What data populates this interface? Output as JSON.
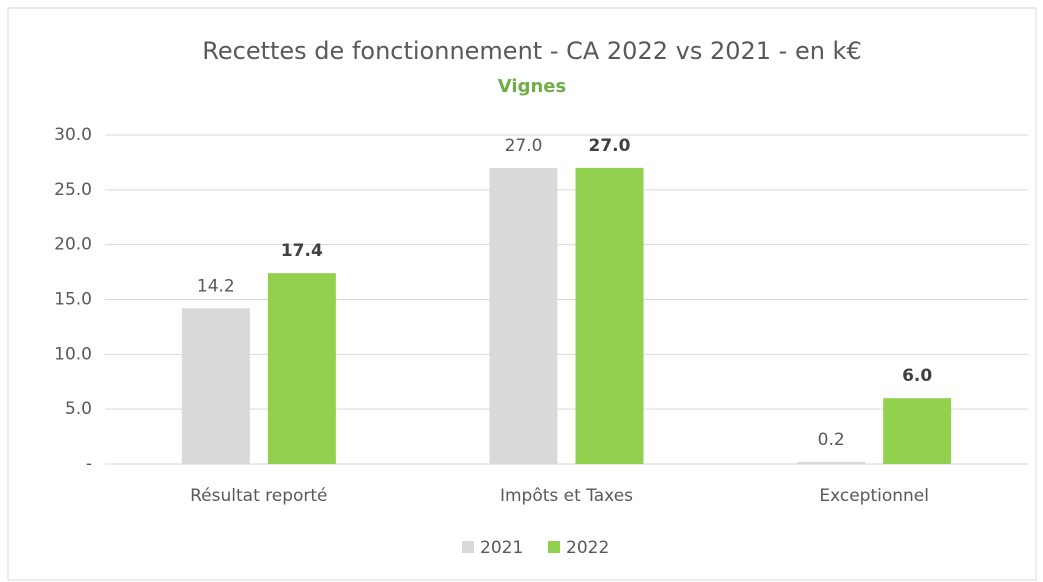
{
  "chart_data": {
    "type": "bar",
    "title": "Recettes de fonctionnement - CA 2022 vs 2021 - en k€",
    "subtitle": "Vignes",
    "categories": [
      "Résultat reporté",
      "Impôts et Taxes",
      "Exceptionnel"
    ],
    "series": [
      {
        "name": "2021",
        "color": "#d9d9d9",
        "values": [
          14.2,
          27.0,
          0.2
        ],
        "value_labels": [
          "14.2",
          "27.0",
          "0.2"
        ]
      },
      {
        "name": "2022",
        "color": "#92d050",
        "values": [
          17.4,
          27.0,
          6.0
        ],
        "value_labels": [
          "17.4",
          "27.0",
          "6.0"
        ]
      }
    ],
    "ylim": [
      0,
      30
    ],
    "yticks": [
      {
        "value": 0,
        "label": "-"
      },
      {
        "value": 5,
        "label": "5.0"
      },
      {
        "value": 10,
        "label": "10.0"
      },
      {
        "value": 15,
        "label": "15.0"
      },
      {
        "value": 20,
        "label": "20.0"
      },
      {
        "value": 25,
        "label": "25.0"
      },
      {
        "value": 30,
        "label": "30.0"
      }
    ],
    "grid": true,
    "legend": "bottom"
  }
}
